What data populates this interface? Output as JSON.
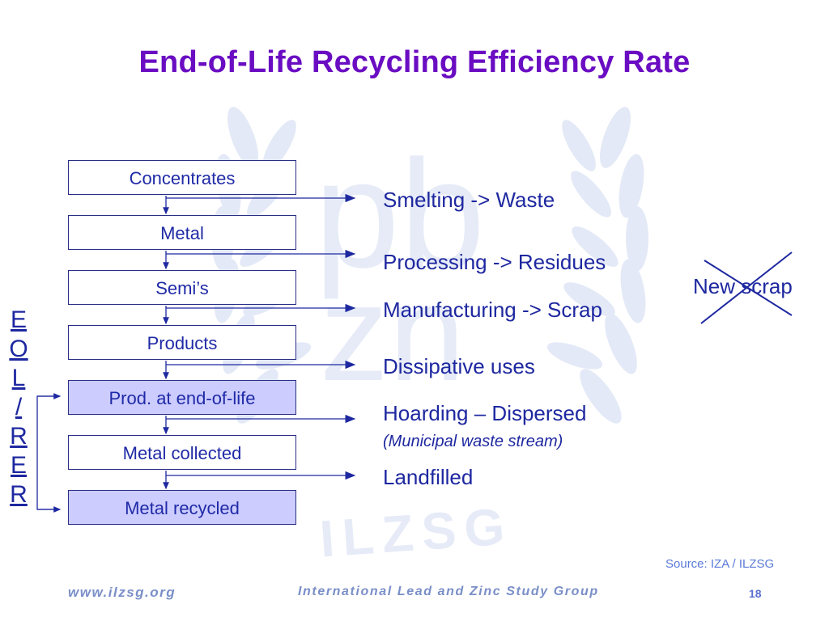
{
  "title": "End-of-Life Recycling Efficiency Rate",
  "flow_boxes": [
    "Concentrates",
    "Metal",
    "Semi’s",
    "Products",
    "Prod. at end-of-life",
    "Metal collected",
    "Metal recycled"
  ],
  "outputs": [
    "Smelting -> Waste",
    "Processing -> Residues",
    "Manufacturing -> Scrap",
    "Dissipative uses",
    "Hoarding – Dispersed",
    "(Municipal waste stream)",
    "Landfilled"
  ],
  "eoler_letters": [
    "E",
    "O",
    "L",
    "/",
    "R",
    "E",
    "R"
  ],
  "crossed_label": "New scrap",
  "source": "Source: IZA / ILZSG",
  "footer": {
    "website": "www.ilzsg.org",
    "organization": "International Lead and Zinc Study Group",
    "page_number": "18"
  },
  "watermark_text": {
    "pb": "pb",
    "zn": "zn",
    "ilzsg": "ILZSG"
  },
  "colors": {
    "title": "#6a0dc2",
    "text": "#1e28a0",
    "highlight_box": "#ccccff",
    "watermark": "#dde4f4"
  }
}
